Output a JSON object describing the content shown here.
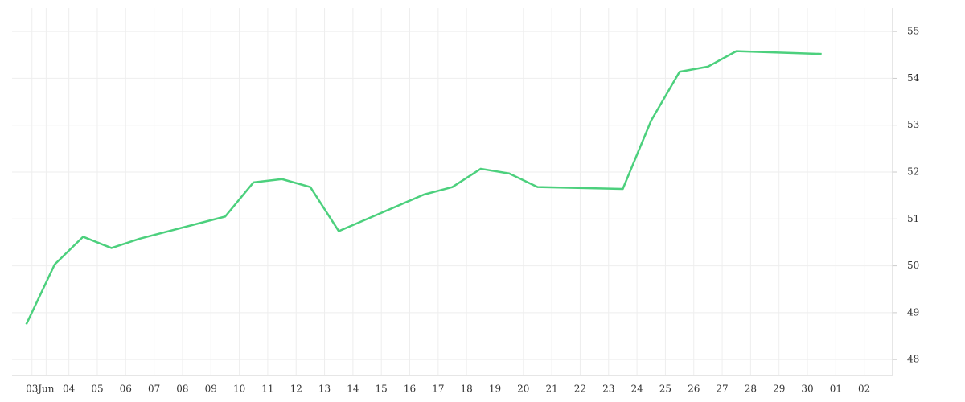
{
  "chart_data": {
    "type": "line",
    "x": [
      -0.5,
      0.5,
      1.5,
      2.5,
      3.5,
      6.5,
      7.5,
      8.5,
      9.5,
      10.5,
      13.5,
      14.5,
      15.5,
      16.5,
      17.5,
      20.5,
      21.5,
      22.5,
      23.5,
      24.5,
      27.5
    ],
    "series": [
      {
        "color": "#4cd07d",
        "values": [
          48.75,
          50.03,
          50.62,
          50.38,
          50.58,
          51.05,
          51.78,
          51.85,
          51.68,
          50.74,
          51.52,
          51.68,
          52.07,
          51.97,
          51.68,
          51.64,
          53.1,
          54.14,
          54.25,
          54.58,
          54.52
        ]
      }
    ],
    "xlim": [
      -1.0,
      30.0
    ],
    "ylim": [
      47.66,
      55.5
    ],
    "xticks": [
      {
        "value": -0.3,
        "label": "03"
      },
      {
        "value": 0.2,
        "label": "Jun"
      },
      {
        "value": 1,
        "label": "04"
      },
      {
        "value": 2,
        "label": "05"
      },
      {
        "value": 3,
        "label": "06"
      },
      {
        "value": 4,
        "label": "07"
      },
      {
        "value": 5,
        "label": "08"
      },
      {
        "value": 6,
        "label": "09"
      },
      {
        "value": 7,
        "label": "10"
      },
      {
        "value": 8,
        "label": "11"
      },
      {
        "value": 9,
        "label": "12"
      },
      {
        "value": 10,
        "label": "13"
      },
      {
        "value": 11,
        "label": "14"
      },
      {
        "value": 12,
        "label": "15"
      },
      {
        "value": 13,
        "label": "16"
      },
      {
        "value": 14,
        "label": "17"
      },
      {
        "value": 15,
        "label": "18"
      },
      {
        "value": 16,
        "label": "19"
      },
      {
        "value": 17,
        "label": "20"
      },
      {
        "value": 18,
        "label": "21"
      },
      {
        "value": 19,
        "label": "22"
      },
      {
        "value": 20,
        "label": "23"
      },
      {
        "value": 21,
        "label": "24"
      },
      {
        "value": 22,
        "label": "25"
      },
      {
        "value": 23,
        "label": "26"
      },
      {
        "value": 24,
        "label": "27"
      },
      {
        "value": 25,
        "label": "28"
      },
      {
        "value": 26,
        "label": "29"
      },
      {
        "value": 27,
        "label": "30"
      },
      {
        "value": 28,
        "label": "01"
      },
      {
        "value": 29,
        "label": "02"
      }
    ],
    "yticks": [
      48,
      49,
      50,
      51,
      52,
      53,
      54,
      55
    ],
    "grid": true
  }
}
